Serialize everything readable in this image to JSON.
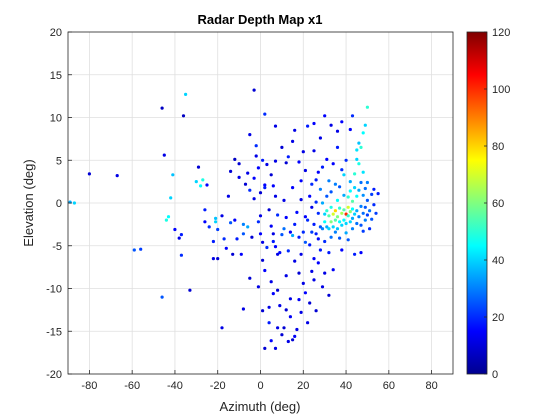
{
  "chart_data": {
    "type": "scatter",
    "title": "Radar Depth Map x1",
    "xlabel": "Azimuth (deg)",
    "ylabel": "Elevation (deg)",
    "xlim": [
      -90,
      90
    ],
    "ylim": [
      -20,
      20
    ],
    "xticks": [
      "-80",
      "-60",
      "-40",
      "-20",
      "0",
      "20",
      "40",
      "60",
      "80"
    ],
    "yticks": [
      "20",
      "15",
      "10",
      "5",
      "0",
      "-5",
      "-10",
      "-15",
      "-20"
    ],
    "grid": true,
    "colormap": "jet",
    "colorbar": {
      "limits": [
        0,
        120
      ],
      "ticks": [
        "120",
        "100",
        "80",
        "60",
        "40",
        "20",
        "0"
      ]
    },
    "points": [
      [
        -89,
        0.1,
        35
      ],
      [
        -87,
        0.0,
        40
      ],
      [
        -80,
        3.4,
        10
      ],
      [
        -67,
        3.2,
        12
      ],
      [
        -59,
        -5.5,
        25
      ],
      [
        -56,
        -5.4,
        22
      ],
      [
        -46,
        11.1,
        8
      ],
      [
        -46,
        -11,
        25
      ],
      [
        -45,
        5.6,
        12
      ],
      [
        -44,
        -2,
        48
      ],
      [
        -43,
        -1.6,
        45
      ],
      [
        -42,
        0.6,
        40
      ],
      [
        -41,
        3.3,
        38
      ],
      [
        -40,
        -3.1,
        15
      ],
      [
        -38,
        -4.1,
        12
      ],
      [
        -37,
        -3.7,
        18
      ],
      [
        -37,
        -6.1,
        20
      ],
      [
        -35,
        12.7,
        40
      ],
      [
        -36,
        10.2,
        8
      ],
      [
        -33,
        -10.2,
        10
      ],
      [
        -30,
        2.5,
        40
      ],
      [
        -29,
        4.2,
        10
      ],
      [
        -28,
        2.0,
        45
      ],
      [
        -27,
        2.7,
        48
      ],
      [
        -26,
        -0.8,
        18
      ],
      [
        -26,
        -2.2,
        15
      ],
      [
        -25,
        2.1,
        15
      ],
      [
        -24,
        -2.8,
        20
      ],
      [
        -22,
        -4.5,
        18
      ],
      [
        -22,
        -6.5,
        12
      ],
      [
        -21,
        -1.8,
        38
      ],
      [
        -21,
        -2.2,
        40
      ],
      [
        -20,
        -3.1,
        22
      ],
      [
        -20,
        -6.5,
        10
      ],
      [
        -18,
        -1.5,
        12
      ],
      [
        -18,
        -14.6,
        12
      ],
      [
        -17,
        -4.2,
        20
      ],
      [
        -16,
        -5.3,
        15
      ],
      [
        -15,
        0.8,
        12
      ],
      [
        -14,
        3.7,
        10
      ],
      [
        -14,
        -2.3,
        25
      ],
      [
        -13,
        -6.0,
        10
      ],
      [
        -12,
        -2.0,
        15
      ],
      [
        -12,
        5.1,
        8
      ],
      [
        -11,
        -4.2,
        18
      ],
      [
        -10,
        4.6,
        10
      ],
      [
        -10,
        3.0,
        12
      ],
      [
        -9,
        -6.0,
        15
      ],
      [
        -8,
        -2.5,
        30
      ],
      [
        -8,
        -3.6,
        25
      ],
      [
        -7,
        2.2,
        10
      ],
      [
        -6,
        3.5,
        12
      ],
      [
        -6,
        -2.8,
        35
      ],
      [
        -5,
        1.5,
        20
      ],
      [
        -5,
        8.0,
        12
      ],
      [
        -4,
        -4.0,
        10
      ],
      [
        -3,
        0.5,
        12
      ],
      [
        -3,
        2.9,
        15
      ],
      [
        -2,
        6.7,
        20
      ],
      [
        -2,
        5.5,
        12
      ],
      [
        -1,
        4.1,
        15
      ],
      [
        -1,
        -2.2,
        20
      ],
      [
        0,
        1.2,
        10
      ],
      [
        0,
        -1.5,
        12
      ],
      [
        0,
        -3.6,
        15
      ],
      [
        1,
        5.0,
        18
      ],
      [
        1,
        -4.6,
        12
      ],
      [
        1,
        -6.7,
        10
      ],
      [
        2,
        2.1,
        15
      ],
      [
        2,
        1.8,
        18
      ],
      [
        2,
        -7.9,
        15
      ],
      [
        2,
        10.4,
        20
      ],
      [
        3,
        4.5,
        12
      ],
      [
        3,
        -5.2,
        20
      ],
      [
        4,
        -0.8,
        10
      ],
      [
        4,
        -12.2,
        12
      ],
      [
        4,
        -14.0,
        18
      ],
      [
        5,
        3.3,
        10
      ],
      [
        5,
        -2.7,
        14
      ],
      [
        5,
        -9.2,
        12
      ],
      [
        5,
        -16.1,
        15
      ],
      [
        6,
        2.0,
        15
      ],
      [
        6,
        -3.6,
        12
      ],
      [
        6,
        -4.5,
        18
      ],
      [
        7,
        4.9,
        12
      ],
      [
        7,
        0.8,
        12
      ],
      [
        7,
        -5.1,
        15
      ],
      [
        7,
        9.0,
        12
      ],
      [
        8,
        -1.4,
        20
      ],
      [
        8,
        -6.0,
        12
      ],
      [
        8,
        -10.2,
        10
      ],
      [
        8,
        -14.6,
        12
      ],
      [
        9,
        -5.8,
        16
      ],
      [
        10,
        -3.7,
        25
      ],
      [
        10,
        -15.4,
        10
      ],
      [
        11,
        -3.0,
        28
      ],
      [
        11,
        0.3,
        12
      ],
      [
        12,
        4.7,
        10
      ],
      [
        12,
        -1.7,
        15
      ],
      [
        12,
        -8.5,
        12
      ],
      [
        12,
        -12.5,
        10
      ],
      [
        13,
        5.4,
        18
      ],
      [
        13,
        -5.6,
        20
      ],
      [
        14,
        -3.4,
        15
      ],
      [
        14,
        -11.2,
        12
      ],
      [
        14,
        -13.3,
        14
      ],
      [
        15,
        1.8,
        15
      ],
      [
        15,
        -3.8,
        35
      ],
      [
        15,
        -16.0,
        10
      ],
      [
        16,
        -2.5,
        18
      ],
      [
        16,
        -6.8,
        12
      ],
      [
        16,
        8.5,
        12
      ],
      [
        17,
        -1.1,
        16
      ],
      [
        17,
        -14.8,
        12
      ],
      [
        18,
        -4.0,
        18
      ],
      [
        18,
        -8.2,
        10
      ],
      [
        18,
        -11.3,
        14
      ],
      [
        19,
        2.6,
        15
      ],
      [
        19,
        -6.0,
        12
      ],
      [
        19,
        0.4,
        12
      ],
      [
        20,
        -3.4,
        20
      ],
      [
        20,
        -9.4,
        12
      ],
      [
        21,
        -1.6,
        15
      ],
      [
        21,
        -4.6,
        25
      ],
      [
        21,
        3.8,
        12
      ],
      [
        22,
        9.0,
        18
      ],
      [
        22,
        -2.0,
        20
      ],
      [
        22,
        -14.0,
        12
      ],
      [
        23,
        0.8,
        15
      ],
      [
        23,
        -4.9,
        18
      ],
      [
        23,
        -11.7,
        10
      ],
      [
        24,
        -0.5,
        12
      ],
      [
        24,
        -3.4,
        22
      ],
      [
        24,
        2.2,
        20
      ],
      [
        25,
        6.1,
        12
      ],
      [
        25,
        -2.5,
        18
      ],
      [
        25,
        -6.5,
        14
      ],
      [
        25,
        -9.0,
        12
      ],
      [
        26,
        0.1,
        20
      ],
      [
        26,
        -3.6,
        18
      ],
      [
        26,
        2.7,
        18
      ],
      [
        26,
        -12.6,
        10
      ],
      [
        27,
        -1.2,
        20
      ],
      [
        27,
        -4.2,
        16
      ],
      [
        27,
        3.6,
        15
      ],
      [
        28,
        -2.8,
        25
      ],
      [
        28,
        -5.5,
        18
      ],
      [
        28,
        1.6,
        30
      ],
      [
        28,
        7.6,
        12
      ],
      [
        29,
        0.0,
        35
      ],
      [
        29,
        -3.0,
        30
      ],
      [
        29,
        4.2,
        18
      ],
      [
        30,
        -1.3,
        40
      ],
      [
        30,
        -4.5,
        20
      ],
      [
        30,
        -8.2,
        12
      ],
      [
        30,
        10.2,
        15
      ],
      [
        30,
        -2.2,
        45
      ],
      [
        31,
        -0.9,
        50
      ],
      [
        31,
        0.8,
        25
      ],
      [
        31,
        -2.8,
        35
      ],
      [
        31,
        5.1,
        15
      ],
      [
        32,
        -1.5,
        55
      ],
      [
        32,
        -3.0,
        40
      ],
      [
        32,
        -5.8,
        18
      ],
      [
        32,
        2.6,
        30
      ],
      [
        33,
        -0.5,
        48
      ],
      [
        33,
        -2.2,
        60
      ],
      [
        33,
        -4.0,
        28
      ],
      [
        33,
        1.3,
        25
      ],
      [
        34,
        -1.3,
        70
      ],
      [
        34,
        -2.8,
        40
      ],
      [
        34,
        4.6,
        15
      ],
      [
        34,
        -7.8,
        14
      ],
      [
        35,
        -0.9,
        80
      ],
      [
        35,
        -2.0,
        55
      ],
      [
        35,
        -3.4,
        30
      ],
      [
        35,
        2.2,
        30
      ],
      [
        36,
        -1.6,
        60
      ],
      [
        36,
        -3.0,
        38
      ],
      [
        36,
        0.3,
        45
      ],
      [
        36,
        6.5,
        18
      ],
      [
        37,
        -0.6,
        50
      ],
      [
        37,
        -2.2,
        45
      ],
      [
        37,
        -4.1,
        25
      ],
      [
        37,
        1.9,
        25
      ],
      [
        38,
        -1.2,
        65
      ],
      [
        38,
        -2.6,
        40
      ],
      [
        38,
        3.9,
        20
      ],
      [
        38,
        -5.5,
        15
      ],
      [
        39,
        -0.8,
        55
      ],
      [
        39,
        -2.0,
        45
      ],
      [
        39,
        0.9,
        35
      ],
      [
        39,
        3.3,
        40
      ],
      [
        40,
        -1.3,
        100
      ],
      [
        40,
        -2.4,
        40
      ],
      [
        40,
        -3.5,
        35
      ],
      [
        40,
        5.0,
        20
      ],
      [
        41,
        -0.5,
        70
      ],
      [
        41,
        -1.5,
        50
      ],
      [
        41,
        0.7,
        50
      ],
      [
        41,
        -4.3,
        25
      ],
      [
        42,
        -1.0,
        60
      ],
      [
        42,
        -2.2,
        40
      ],
      [
        42,
        1.4,
        45
      ],
      [
        42,
        2.5,
        35
      ],
      [
        43,
        -0.7,
        45
      ],
      [
        43,
        -1.8,
        35
      ],
      [
        43,
        -3.0,
        30
      ],
      [
        43,
        0.2,
        55
      ],
      [
        44,
        -1.3,
        40
      ],
      [
        44,
        1.8,
        40
      ],
      [
        44,
        3.4,
        50
      ],
      [
        44,
        -6.0,
        18
      ],
      [
        45,
        -0.9,
        35
      ],
      [
        45,
        -2.4,
        28
      ],
      [
        45,
        0.8,
        45
      ],
      [
        45,
        5.1,
        40
      ],
      [
        46,
        -1.6,
        30
      ],
      [
        46,
        1.5,
        35
      ],
      [
        46,
        4.6,
        48
      ],
      [
        47,
        -0.4,
        30
      ],
      [
        47,
        -2.6,
        25
      ],
      [
        47,
        2.4,
        28
      ],
      [
        47,
        -5.8,
        15
      ],
      [
        48,
        -1.2,
        28
      ],
      [
        48,
        0.9,
        32
      ],
      [
        48,
        -3.3,
        22
      ],
      [
        48,
        3.6,
        42
      ],
      [
        49,
        -0.5,
        25
      ],
      [
        49,
        1.7,
        28
      ],
      [
        49,
        -2.0,
        30
      ],
      [
        50,
        -1.4,
        22
      ],
      [
        50,
        0.3,
        25
      ],
      [
        50,
        2.4,
        30
      ],
      [
        51,
        -0.9,
        28
      ],
      [
        51,
        -3.0,
        20
      ],
      [
        52,
        1.0,
        22
      ],
      [
        52,
        -1.9,
        25
      ],
      [
        53,
        -0.2,
        20
      ],
      [
        53,
        1.6,
        18
      ],
      [
        54,
        -1.2,
        22
      ],
      [
        55,
        1.1,
        18
      ],
      [
        50,
        11.2,
        50
      ],
      [
        49,
        9.1,
        40
      ],
      [
        48,
        8.2,
        45
      ],
      [
        45,
        6.2,
        42
      ],
      [
        46,
        7.0,
        38
      ],
      [
        47,
        6.5,
        50
      ],
      [
        36,
        8.4,
        12
      ],
      [
        38,
        9.5,
        15
      ],
      [
        33,
        9.1,
        12
      ],
      [
        43,
        10.2,
        20
      ],
      [
        42,
        8.6,
        15
      ],
      [
        25,
        9.3,
        15
      ],
      [
        20,
        6.0,
        12
      ],
      [
        18,
        4.8,
        15
      ],
      [
        15,
        7.2,
        12
      ],
      [
        10,
        6.5,
        10
      ],
      [
        -3,
        13.2,
        10
      ],
      [
        6,
        -10.6,
        15
      ],
      [
        9,
        -12.0,
        12
      ],
      [
        11,
        -14.6,
        10
      ],
      [
        13,
        -16.2,
        12
      ],
      [
        2,
        -17.0,
        10
      ],
      [
        7,
        -17.0,
        12
      ],
      [
        16,
        -15.6,
        14
      ],
      [
        19,
        -12.8,
        12
      ],
      [
        21,
        -10.5,
        15
      ],
      [
        24,
        -8.0,
        12
      ],
      [
        27,
        -7.0,
        15
      ],
      [
        29,
        -9.8,
        12
      ],
      [
        32,
        -10.8,
        10
      ],
      [
        -1,
        -9.8,
        12
      ],
      [
        -5,
        -8.8,
        10
      ],
      [
        -8,
        -12.4,
        12
      ],
      [
        1,
        -12.6,
        10
      ]
    ]
  }
}
